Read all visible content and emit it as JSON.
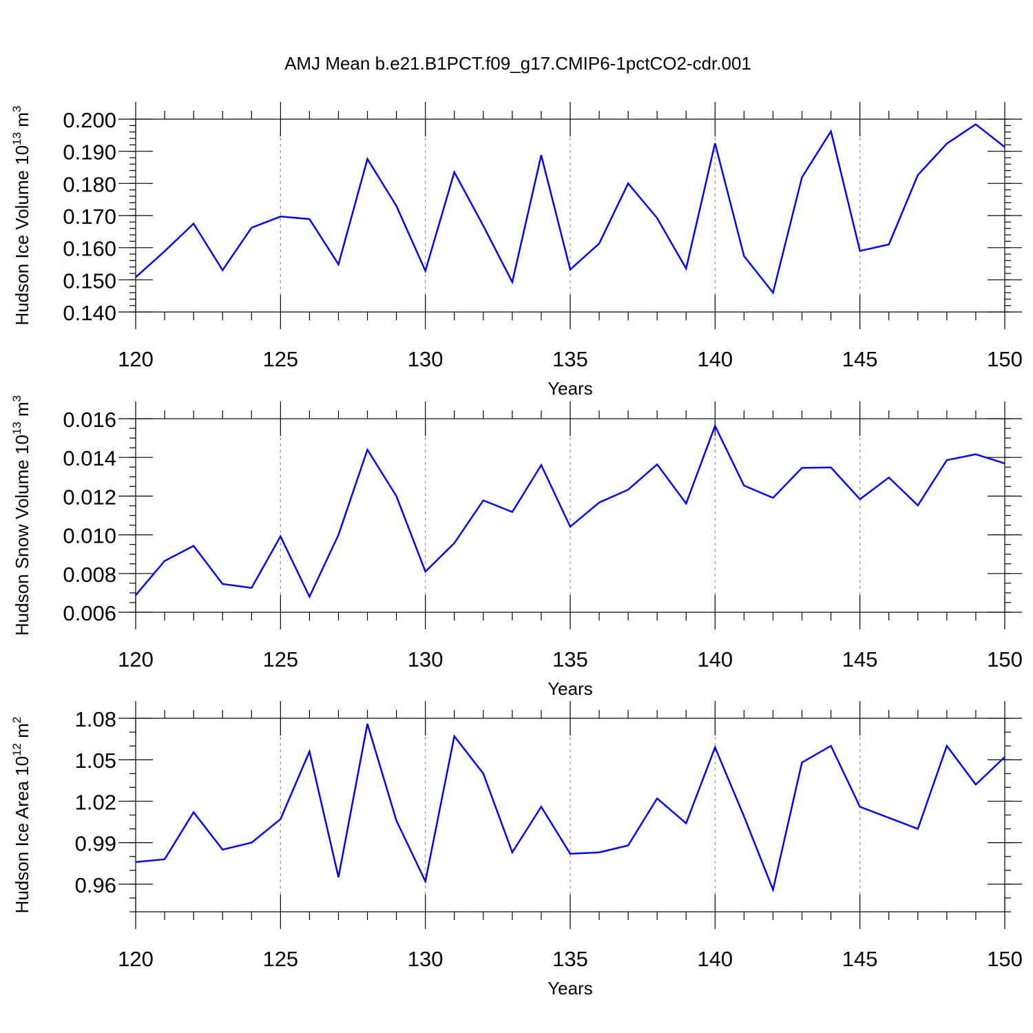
{
  "title": "AMJ Mean b.e21.B1PCT.f09_g17.CMIP6-1pctCO2-cdr.001",
  "colors": {
    "line": "#0000ff",
    "axis": "#000000",
    "grid": "#7f7f7f"
  },
  "chart_data": [
    {
      "type": "line",
      "ylabel_main": "Hudson Ice Volume 10",
      "ylabel_exp": "13",
      "ylabel_unit": " m",
      "ylabel_unit_exp": "3",
      "xlabel": "Years",
      "xlim": [
        120,
        150
      ],
      "ylim": [
        0.14,
        0.2
      ],
      "yticks": [
        0.14,
        0.15,
        0.16,
        0.17,
        0.18,
        0.19,
        0.2
      ],
      "ytick_labels": [
        "0.140",
        "0.150",
        "0.160",
        "0.170",
        "0.180",
        "0.190",
        "0.200"
      ],
      "yminor_step": 0.002,
      "xticks": [
        120,
        125,
        130,
        135,
        140,
        145,
        150
      ],
      "xtick_labels": [
        "120",
        "125",
        "130",
        "135",
        "140",
        "145",
        "150"
      ],
      "x": [
        120,
        121,
        122,
        123,
        124,
        125,
        126,
        127,
        128,
        129,
        130,
        131,
        132,
        133,
        134,
        135,
        136,
        137,
        138,
        139,
        140,
        141,
        142,
        143,
        144,
        145,
        146,
        147,
        148,
        149,
        150
      ],
      "values": [
        0.1508,
        0.1589,
        0.1675,
        0.153,
        0.1662,
        0.1697,
        0.1689,
        0.1548,
        0.1876,
        0.173,
        0.1528,
        0.1835,
        0.1668,
        0.1493,
        0.1888,
        0.1532,
        0.1613,
        0.18,
        0.1692,
        0.1535,
        0.1925,
        0.1574,
        0.146,
        0.1819,
        0.1962,
        0.159,
        0.161,
        0.1826,
        0.1924,
        0.1984,
        0.1913
      ]
    },
    {
      "type": "line",
      "ylabel_main": "Hudson Snow Volume 10",
      "ylabel_exp": "13",
      "ylabel_unit": " m",
      "ylabel_unit_exp": "3",
      "xlabel": "Years",
      "xlim": [
        120,
        150
      ],
      "ylim": [
        0.006,
        0.016
      ],
      "yticks": [
        0.006,
        0.008,
        0.01,
        0.012,
        0.014,
        0.016
      ],
      "ytick_labels": [
        "0.006",
        "0.008",
        "0.010",
        "0.012",
        "0.014",
        "0.016"
      ],
      "yminor_step": 0.0005,
      "xticks": [
        120,
        125,
        130,
        135,
        140,
        145,
        150
      ],
      "xtick_labels": [
        "120",
        "125",
        "130",
        "135",
        "140",
        "145",
        "150"
      ],
      "x": [
        120,
        121,
        122,
        123,
        124,
        125,
        126,
        127,
        128,
        129,
        130,
        131,
        132,
        133,
        134,
        135,
        136,
        137,
        138,
        139,
        140,
        141,
        142,
        143,
        144,
        145,
        146,
        147,
        148,
        149,
        150
      ],
      "values": [
        0.00688,
        0.00865,
        0.00943,
        0.00746,
        0.00726,
        0.00992,
        0.0068,
        0.01,
        0.0144,
        0.012,
        0.0081,
        0.00957,
        0.01178,
        0.01118,
        0.0136,
        0.01042,
        0.01167,
        0.01233,
        0.01364,
        0.01162,
        0.01563,
        0.01254,
        0.01191,
        0.01346,
        0.01348,
        0.01184,
        0.01296,
        0.01152,
        0.01386,
        0.01416,
        0.01369
      ]
    },
    {
      "type": "line",
      "ylabel_main": "Hudson Ice Area 10",
      "ylabel_exp": "12",
      "ylabel_unit": " m",
      "ylabel_unit_exp": "2",
      "xlabel": "Years",
      "xlim": [
        120,
        150
      ],
      "ylim": [
        0.94,
        1.08
      ],
      "yticks": [
        0.96,
        0.99,
        1.02,
        1.05,
        1.08
      ],
      "ytick_labels": [
        "0.96",
        "0.99",
        "1.02",
        "1.05",
        "1.08"
      ],
      "yminor_step": 0.01,
      "xticks": [
        120,
        125,
        130,
        135,
        140,
        145,
        150
      ],
      "xtick_labels": [
        "120",
        "125",
        "130",
        "135",
        "140",
        "145",
        "150"
      ],
      "x": [
        120,
        121,
        122,
        123,
        124,
        125,
        126,
        127,
        128,
        129,
        130,
        131,
        132,
        133,
        134,
        135,
        136,
        137,
        138,
        139,
        140,
        141,
        142,
        143,
        144,
        145,
        146,
        147,
        148,
        149,
        150
      ],
      "values": [
        0.976,
        0.978,
        1.012,
        0.985,
        0.99,
        1.007,
        1.056,
        0.965,
        1.076,
        1.006,
        0.962,
        1.067,
        1.04,
        0.983,
        1.016,
        0.982,
        0.983,
        0.988,
        1.022,
        1.004,
        1.059,
        1.009,
        0.956,
        1.048,
        1.06,
        1.016,
        1.008,
        1.0,
        1.06,
        1.032,
        1.052
      ]
    }
  ]
}
